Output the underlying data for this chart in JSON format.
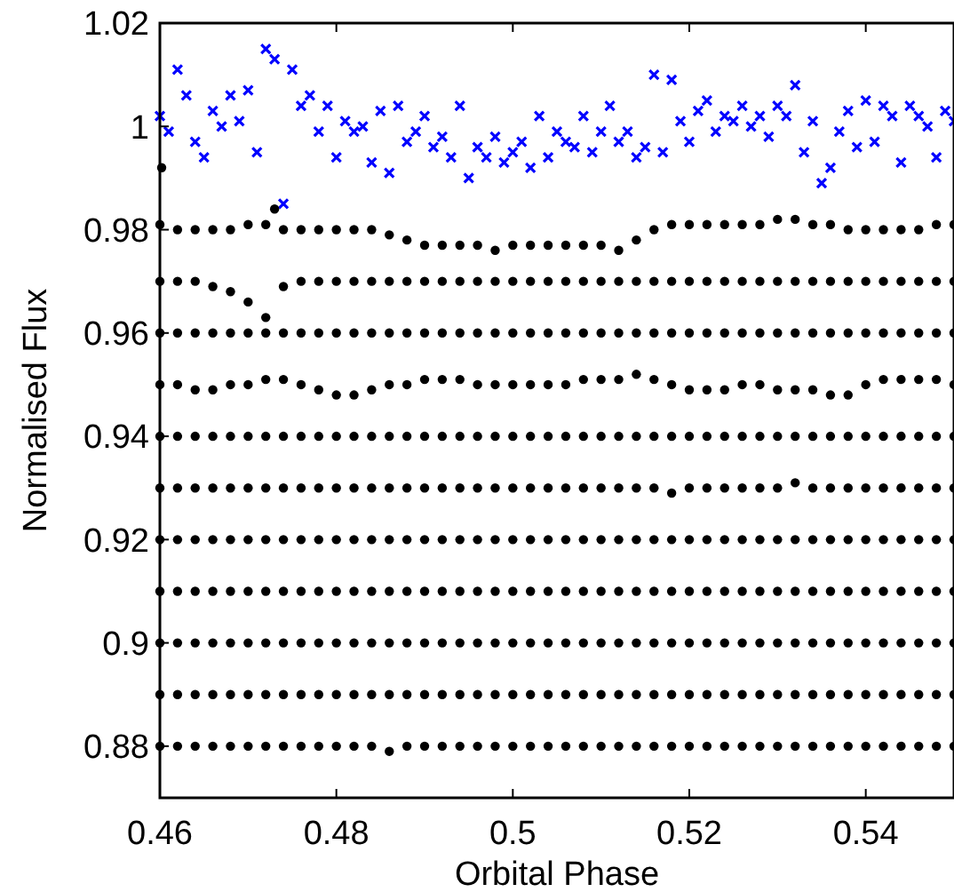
{
  "chart_data": {
    "type": "scatter",
    "xlabel": "Orbital Phase",
    "ylabel": "Normalised Flux",
    "xlim": [
      0.46,
      0.55
    ],
    "ylim": [
      0.87,
      1.02
    ],
    "xticks": [
      0.46,
      0.48,
      0.5,
      0.52,
      0.54
    ],
    "yticks": [
      0.88,
      0.9,
      0.92,
      0.94,
      0.96,
      0.98,
      1,
      1.02
    ],
    "grid": false,
    "x": [
      0.46,
      0.462,
      0.464,
      0.466,
      0.468,
      0.47,
      0.472,
      0.474,
      0.476,
      0.478,
      0.48,
      0.482,
      0.484,
      0.486,
      0.488,
      0.49,
      0.492,
      0.494,
      0.496,
      0.498,
      0.5,
      0.502,
      0.504,
      0.506,
      0.508,
      0.51,
      0.512,
      0.514,
      0.516,
      0.518,
      0.52,
      0.522,
      0.524,
      0.526,
      0.528,
      0.53,
      0.532,
      0.534,
      0.536,
      0.538,
      0.54,
      0.542,
      0.544,
      0.546,
      0.548,
      0.55
    ],
    "series": [
      {
        "color": "#0000ff",
        "marker": "cross",
        "x": [
          0.46,
          0.461,
          0.462,
          0.463,
          0.464,
          0.465,
          0.466,
          0.467,
          0.468,
          0.469,
          0.47,
          0.471,
          0.472,
          0.473,
          0.474,
          0.475,
          0.476,
          0.477,
          0.478,
          0.479,
          0.48,
          0.481,
          0.482,
          0.483,
          0.484,
          0.485,
          0.486,
          0.487,
          0.488,
          0.489,
          0.49,
          0.491,
          0.492,
          0.493,
          0.494,
          0.495,
          0.496,
          0.497,
          0.498,
          0.499,
          0.5,
          0.501,
          0.502,
          0.503,
          0.504,
          0.505,
          0.506,
          0.507,
          0.508,
          0.509,
          0.51,
          0.511,
          0.512,
          0.513,
          0.514,
          0.515,
          0.516,
          0.517,
          0.518,
          0.519,
          0.52,
          0.521,
          0.522,
          0.523,
          0.524,
          0.525,
          0.526,
          0.527,
          0.528,
          0.529,
          0.53,
          0.531,
          0.532,
          0.533,
          0.534,
          0.535,
          0.536,
          0.537,
          0.538,
          0.539,
          0.54,
          0.541,
          0.542,
          0.543,
          0.544,
          0.545,
          0.546,
          0.547,
          0.548,
          0.549,
          0.55
        ],
        "values": [
          1.002,
          0.999,
          1.011,
          1.006,
          0.997,
          0.994,
          1.003,
          1.0,
          1.006,
          1.001,
          1.007,
          0.995,
          1.015,
          1.013,
          0.985,
          1.011,
          1.004,
          1.006,
          0.999,
          1.004,
          0.994,
          1.001,
          0.999,
          1.0,
          0.993,
          1.003,
          0.991,
          1.004,
          0.997,
          0.999,
          1.002,
          0.996,
          0.998,
          0.994,
          1.004,
          0.99,
          0.996,
          0.994,
          0.998,
          0.993,
          0.995,
          0.997,
          0.992,
          1.002,
          0.994,
          0.999,
          0.997,
          0.996,
          1.002,
          0.995,
          0.999,
          1.004,
          0.997,
          0.999,
          0.994,
          0.996,
          1.01,
          0.995,
          1.009,
          1.001,
          0.997,
          1.003,
          1.005,
          0.999,
          1.002,
          1.001,
          1.004,
          1.0,
          1.002,
          0.998,
          1.004,
          1.002,
          1.008,
          0.995,
          1.001,
          0.989,
          0.992,
          0.999,
          1.003,
          0.996,
          1.005,
          0.997,
          1.004,
          1.002,
          0.993,
          1.004,
          1.002,
          1.0,
          0.994,
          1.003,
          1.001
        ]
      },
      {
        "color": "#000000",
        "marker": "circle",
        "x": [
          0.4602,
          0.46,
          0.462,
          0.464,
          0.466,
          0.468,
          0.47,
          0.472,
          0.473,
          0.474,
          0.476,
          0.478,
          0.48,
          0.482,
          0.484,
          0.486,
          0.488,
          0.49,
          0.492,
          0.494,
          0.496,
          0.498,
          0.5,
          0.502,
          0.504,
          0.506,
          0.508,
          0.51,
          0.512,
          0.514,
          0.516,
          0.518,
          0.52,
          0.522,
          0.524,
          0.526,
          0.528,
          0.53,
          0.532,
          0.534,
          0.536,
          0.538,
          0.54,
          0.542,
          0.544,
          0.546,
          0.548,
          0.55
        ],
        "values": [
          0.992,
          0.981,
          0.98,
          0.98,
          0.98,
          0.98,
          0.981,
          0.981,
          0.984,
          0.98,
          0.98,
          0.98,
          0.98,
          0.98,
          0.98,
          0.979,
          0.978,
          0.977,
          0.977,
          0.977,
          0.977,
          0.976,
          0.977,
          0.977,
          0.977,
          0.977,
          0.977,
          0.977,
          0.976,
          0.978,
          0.98,
          0.981,
          0.981,
          0.981,
          0.981,
          0.981,
          0.981,
          0.982,
          0.982,
          0.981,
          0.981,
          0.98,
          0.98,
          0.98,
          0.98,
          0.98,
          0.981,
          0.981
        ]
      },
      {
        "color": "#000000",
        "marker": "circle",
        "values": [
          0.97,
          0.97,
          0.97,
          0.969,
          0.968,
          0.966,
          0.963,
          0.969,
          0.97,
          0.97,
          0.97,
          0.97,
          0.97,
          0.97,
          0.97,
          0.97,
          0.97,
          0.97,
          0.97,
          0.97,
          0.97,
          0.97,
          0.97,
          0.97,
          0.97,
          0.97,
          0.97,
          0.97,
          0.97,
          0.97,
          0.97,
          0.97,
          0.97,
          0.97,
          0.97,
          0.97,
          0.97,
          0.97,
          0.97,
          0.97,
          0.97,
          0.97,
          0.97,
          0.97,
          0.97,
          0.97
        ]
      },
      {
        "color": "#000000",
        "marker": "circle",
        "values": [
          0.96,
          0.96,
          0.96,
          0.96,
          0.96,
          0.96,
          0.96,
          0.96,
          0.96,
          0.96,
          0.96,
          0.96,
          0.96,
          0.96,
          0.96,
          0.96,
          0.96,
          0.96,
          0.96,
          0.96,
          0.96,
          0.96,
          0.96,
          0.96,
          0.96,
          0.96,
          0.96,
          0.96,
          0.96,
          0.96,
          0.96,
          0.96,
          0.96,
          0.96,
          0.96,
          0.96,
          0.96,
          0.96,
          0.96,
          0.96,
          0.96,
          0.96,
          0.96,
          0.96,
          0.96,
          0.96
        ]
      },
      {
        "color": "#000000",
        "marker": "circle",
        "values": [
          0.95,
          0.95,
          0.949,
          0.949,
          0.95,
          0.95,
          0.951,
          0.951,
          0.95,
          0.949,
          0.948,
          0.948,
          0.949,
          0.95,
          0.95,
          0.951,
          0.951,
          0.951,
          0.95,
          0.95,
          0.95,
          0.95,
          0.95,
          0.95,
          0.951,
          0.951,
          0.951,
          0.952,
          0.951,
          0.95,
          0.949,
          0.949,
          0.949,
          0.95,
          0.95,
          0.949,
          0.949,
          0.949,
          0.948,
          0.948,
          0.95,
          0.951,
          0.951,
          0.951,
          0.951,
          0.95
        ]
      },
      {
        "color": "#000000",
        "marker": "circle",
        "values": [
          0.94,
          0.94,
          0.94,
          0.94,
          0.94,
          0.94,
          0.94,
          0.94,
          0.94,
          0.94,
          0.94,
          0.94,
          0.94,
          0.94,
          0.94,
          0.94,
          0.94,
          0.94,
          0.94,
          0.94,
          0.94,
          0.94,
          0.94,
          0.94,
          0.94,
          0.94,
          0.94,
          0.94,
          0.94,
          0.94,
          0.94,
          0.94,
          0.94,
          0.94,
          0.94,
          0.94,
          0.94,
          0.94,
          0.94,
          0.94,
          0.94,
          0.94,
          0.94,
          0.94,
          0.94,
          0.94
        ]
      },
      {
        "color": "#000000",
        "marker": "circle",
        "values": [
          0.93,
          0.93,
          0.93,
          0.93,
          0.93,
          0.93,
          0.93,
          0.93,
          0.93,
          0.93,
          0.93,
          0.93,
          0.93,
          0.93,
          0.93,
          0.93,
          0.93,
          0.93,
          0.93,
          0.93,
          0.93,
          0.93,
          0.93,
          0.93,
          0.93,
          0.93,
          0.93,
          0.93,
          0.93,
          0.929,
          0.93,
          0.93,
          0.93,
          0.93,
          0.93,
          0.93,
          0.931,
          0.93,
          0.93,
          0.93,
          0.93,
          0.93,
          0.93,
          0.93,
          0.93,
          0.93
        ]
      },
      {
        "color": "#000000",
        "marker": "circle",
        "values": [
          0.92,
          0.92,
          0.92,
          0.92,
          0.92,
          0.92,
          0.92,
          0.92,
          0.92,
          0.92,
          0.92,
          0.92,
          0.92,
          0.92,
          0.92,
          0.92,
          0.92,
          0.92,
          0.92,
          0.92,
          0.92,
          0.92,
          0.92,
          0.92,
          0.92,
          0.92,
          0.92,
          0.92,
          0.92,
          0.92,
          0.92,
          0.92,
          0.92,
          0.92,
          0.92,
          0.92,
          0.92,
          0.92,
          0.92,
          0.92,
          0.92,
          0.92,
          0.92,
          0.92,
          0.92,
          0.92
        ]
      },
      {
        "color": "#000000",
        "marker": "circle",
        "values": [
          0.91,
          0.91,
          0.91,
          0.91,
          0.91,
          0.91,
          0.91,
          0.91,
          0.91,
          0.91,
          0.91,
          0.91,
          0.91,
          0.91,
          0.91,
          0.91,
          0.91,
          0.91,
          0.91,
          0.91,
          0.91,
          0.91,
          0.91,
          0.91,
          0.91,
          0.91,
          0.91,
          0.91,
          0.91,
          0.91,
          0.91,
          0.91,
          0.91,
          0.91,
          0.91,
          0.91,
          0.91,
          0.91,
          0.91,
          0.91,
          0.91,
          0.91,
          0.91,
          0.91,
          0.91,
          0.91
        ]
      },
      {
        "color": "#000000",
        "marker": "circle",
        "values": [
          0.9,
          0.9,
          0.9,
          0.9,
          0.9,
          0.9,
          0.9,
          0.9,
          0.9,
          0.9,
          0.9,
          0.9,
          0.9,
          0.9,
          0.9,
          0.9,
          0.9,
          0.9,
          0.9,
          0.9,
          0.9,
          0.9,
          0.9,
          0.9,
          0.9,
          0.9,
          0.9,
          0.9,
          0.9,
          0.9,
          0.9,
          0.9,
          0.9,
          0.9,
          0.9,
          0.9,
          0.9,
          0.9,
          0.9,
          0.9,
          0.9,
          0.9,
          0.9,
          0.9,
          0.9,
          0.9
        ]
      },
      {
        "color": "#000000",
        "marker": "circle",
        "values": [
          0.89,
          0.89,
          0.89,
          0.89,
          0.89,
          0.89,
          0.89,
          0.89,
          0.89,
          0.89,
          0.89,
          0.89,
          0.89,
          0.89,
          0.89,
          0.89,
          0.89,
          0.89,
          0.89,
          0.89,
          0.89,
          0.89,
          0.89,
          0.89,
          0.89,
          0.89,
          0.89,
          0.89,
          0.89,
          0.89,
          0.89,
          0.89,
          0.89,
          0.89,
          0.89,
          0.89,
          0.89,
          0.89,
          0.89,
          0.89,
          0.89,
          0.89,
          0.89,
          0.89,
          0.89,
          0.89
        ]
      },
      {
        "color": "#000000",
        "marker": "circle",
        "values": [
          0.88,
          0.88,
          0.88,
          0.88,
          0.88,
          0.88,
          0.88,
          0.88,
          0.88,
          0.88,
          0.88,
          0.88,
          0.88,
          0.879,
          0.88,
          0.88,
          0.88,
          0.88,
          0.88,
          0.88,
          0.88,
          0.88,
          0.88,
          0.88,
          0.88,
          0.88,
          0.88,
          0.88,
          0.88,
          0.88,
          0.88,
          0.88,
          0.88,
          0.88,
          0.88,
          0.88,
          0.88,
          0.88,
          0.88,
          0.88,
          0.88,
          0.88,
          0.88,
          0.88,
          0.88,
          0.88
        ]
      }
    ]
  }
}
